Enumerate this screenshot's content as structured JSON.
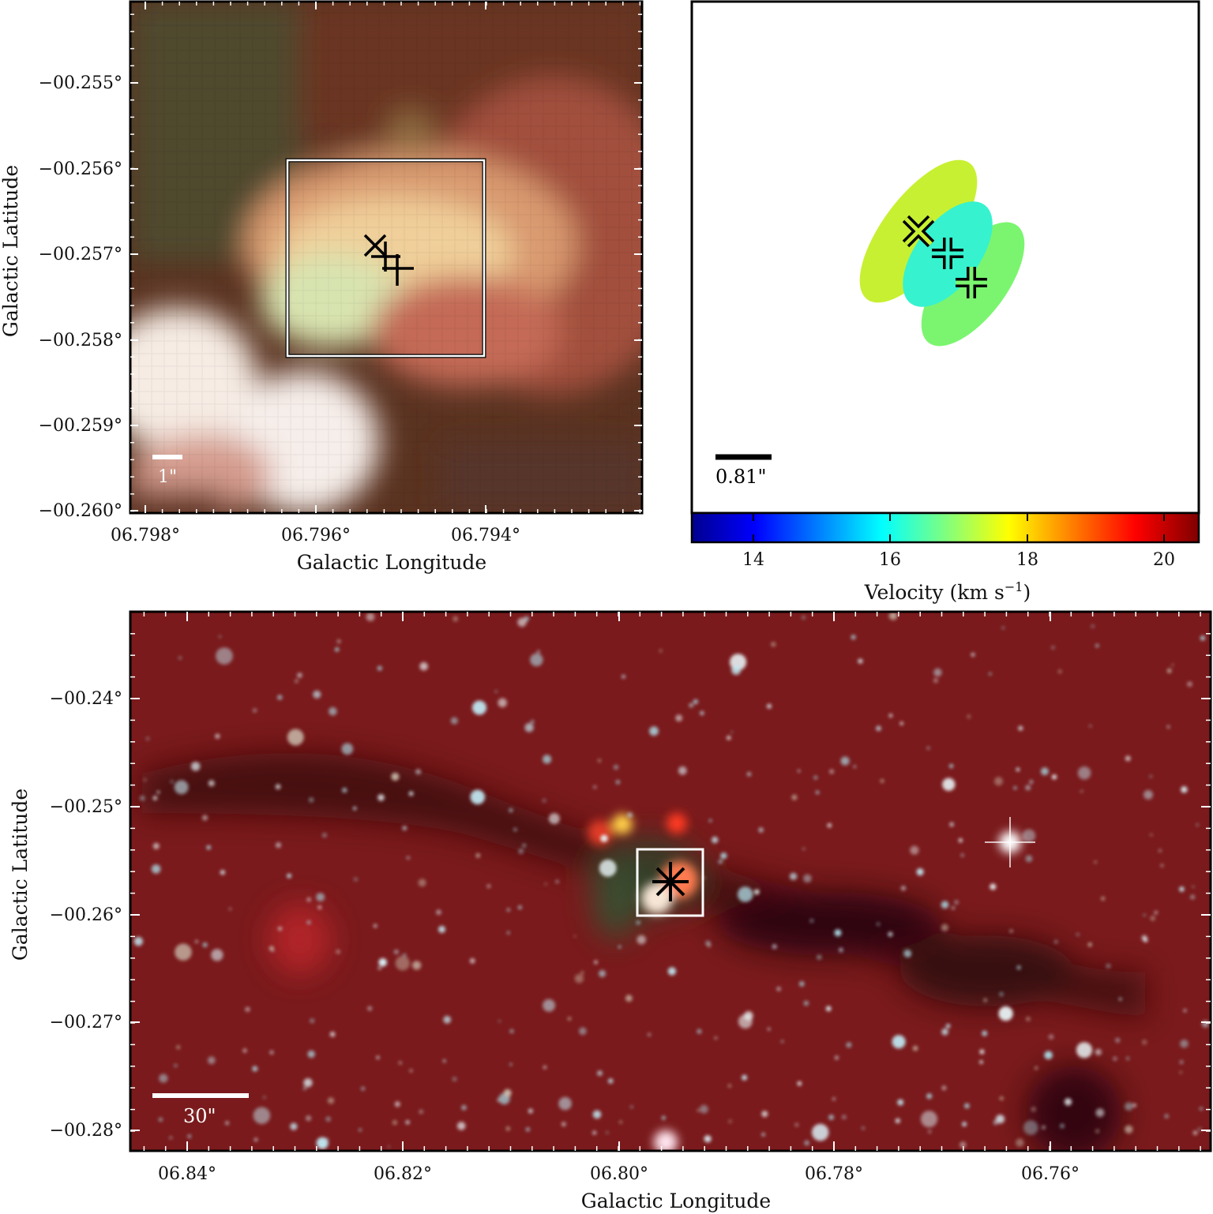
{
  "panels": {
    "top_left": {
      "xlabel": "Galactic Longitude",
      "ylabel": "Galactic Latitude",
      "xticks": [
        "06.798°",
        "06.796°",
        "06.794°"
      ],
      "yticks": [
        "−00.255°",
        "−00.256°",
        "−00.257°",
        "−00.258°",
        "−00.259°",
        "−00.260°"
      ],
      "scalebar_label": "1\""
    },
    "top_right": {
      "scalebar_label": "0.81\"",
      "colorbar": {
        "label": "Velocity (km s",
        "label_sup": "−1",
        "label_end": ")",
        "ticks": [
          "14",
          "16",
          "18",
          "20"
        ]
      },
      "masers": [
        {
          "marker": "x",
          "velocity": 17.5,
          "color": "#c8f032"
        },
        {
          "marker": "plus",
          "velocity": 16.2,
          "color": "#36f2cf"
        },
        {
          "marker": "plus",
          "velocity": 16.8,
          "color": "#7bf56f"
        }
      ]
    },
    "bottom": {
      "xlabel": "Galactic Longitude",
      "ylabel": "Galactic Latitude",
      "xticks": [
        "06.84°",
        "06.82°",
        "06.80°",
        "06.78°",
        "06.76°"
      ],
      "yticks": [
        "−00.24°",
        "−00.25°",
        "−00.26°",
        "−00.27°",
        "−00.28°"
      ],
      "scalebar_label": "30\""
    }
  },
  "colors": {
    "colorbar": [
      "#00008f",
      "#0000ff",
      "#007fff",
      "#00ffff",
      "#7fff7f",
      "#ffff00",
      "#ff7f00",
      "#ff0000",
      "#7f0000"
    ],
    "bottom_bg": "#7a1a1c",
    "star": "#bfe6f0"
  }
}
